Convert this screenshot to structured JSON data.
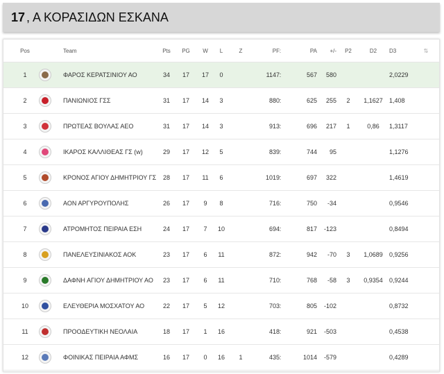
{
  "title": {
    "number": "17",
    "text": ", Α ΚΟΡΑΣΙΔΩΝ ΕΣΚΑΝΑ"
  },
  "columns": {
    "pos": "Pos",
    "team": "Team",
    "pts": "Pts",
    "pg": "PG",
    "w": "W",
    "l": "L",
    "z": "Z",
    "pf": "PF",
    "sep": ":",
    "pa": "PA",
    "pm": "+/-",
    "p2": "P2",
    "d2": "D2",
    "d3": "D3",
    "sort": "⇅"
  },
  "rows": [
    {
      "pos": "1",
      "team": "ΦΑΡΟΣ ΚΕΡΑΤΣΙΝΙΟΥ ΑΟ",
      "pts": "34",
      "pg": "17",
      "w": "17",
      "l": "0",
      "z": "",
      "pf": "1147",
      "pa": "567",
      "pm": "580",
      "p2": "",
      "d2": "",
      "d3": "2,0229",
      "logo_color": "#8a6a4a",
      "highlight": true
    },
    {
      "pos": "2",
      "team": "ΠΑΝΙΩΝΙΟΣ ΓΣΣ",
      "pts": "31",
      "pg": "17",
      "w": "14",
      "l": "3",
      "z": "",
      "pf": "880",
      "pa": "625",
      "pm": "255",
      "p2": "2",
      "d2": "1,1627",
      "d3": "1,408",
      "logo_color": "#c8202a",
      "highlight": false
    },
    {
      "pos": "3",
      "team": "ΠΡΩΤΕΑΣ ΒΟΥΛΑΣ ΑΕΟ",
      "pts": "31",
      "pg": "17",
      "w": "14",
      "l": "3",
      "z": "",
      "pf": "913",
      "pa": "696",
      "pm": "217",
      "p2": "1",
      "d2": "0,86",
      "d3": "1,3117",
      "logo_color": "#d0323a",
      "highlight": false
    },
    {
      "pos": "4",
      "team": "ΙΚΑΡΟΣ ΚΑΛΛΙΘΕΑΣ ΓΣ (w)",
      "pts": "29",
      "pg": "17",
      "w": "12",
      "l": "5",
      "z": "",
      "pf": "839",
      "pa": "744",
      "pm": "95",
      "p2": "",
      "d2": "",
      "d3": "1,1276",
      "logo_color": "#e0487a",
      "highlight": false
    },
    {
      "pos": "5",
      "team": "ΚΡΟΝΟΣ ΑΓΙΟΥ ΔΗΜΗΤΡΙΟΥ ΓΣ",
      "pts": "28",
      "pg": "17",
      "w": "11",
      "l": "6",
      "z": "",
      "pf": "1019",
      "pa": "697",
      "pm": "322",
      "p2": "",
      "d2": "",
      "d3": "1,4619",
      "logo_color": "#b04a2a",
      "highlight": false
    },
    {
      "pos": "6",
      "team": "ΑΟΝ ΑΡΓΥΡΟΥΠΟΛΗΣ",
      "pts": "26",
      "pg": "17",
      "w": "9",
      "l": "8",
      "z": "",
      "pf": "716",
      "pa": "750",
      "pm": "-34",
      "p2": "",
      "d2": "",
      "d3": "0,9546",
      "logo_color": "#4a6ab0",
      "highlight": false
    },
    {
      "pos": "7",
      "team": "ΑΤΡΟΜΗΤΟΣ ΠΕΙΡΑΙΑ ΕΣΗ",
      "pts": "24",
      "pg": "17",
      "w": "7",
      "l": "10",
      "z": "",
      "pf": "694",
      "pa": "817",
      "pm": "-123",
      "p2": "",
      "d2": "",
      "d3": "0,8494",
      "logo_color": "#2a3a8a",
      "highlight": false
    },
    {
      "pos": "8",
      "team": "ΠΑΝΕΛΕΥΣΙΝΙΑΚΟΣ ΑΟΚ",
      "pts": "23",
      "pg": "17",
      "w": "6",
      "l": "11",
      "z": "",
      "pf": "872",
      "pa": "942",
      "pm": "-70",
      "p2": "3",
      "d2": "1,0689",
      "d3": "0,9256",
      "logo_color": "#d8a020",
      "highlight": false
    },
    {
      "pos": "9",
      "team": "ΔΑΦΝΗ ΑΓΙΟΥ ΔΗΜΗΤΡΙΟΥ ΑΟ",
      "pts": "23",
      "pg": "17",
      "w": "6",
      "l": "11",
      "z": "",
      "pf": "710",
      "pa": "768",
      "pm": "-58",
      "p2": "3",
      "d2": "0,9354",
      "d3": "0,9244",
      "logo_color": "#2a7a2a",
      "highlight": false
    },
    {
      "pos": "10",
      "team": "ΕΛΕΥΘΕΡΙΑ ΜΟΣΧΑΤΟΥ ΑΟ",
      "pts": "22",
      "pg": "17",
      "w": "5",
      "l": "12",
      "z": "",
      "pf": "703",
      "pa": "805",
      "pm": "-102",
      "p2": "",
      "d2": "",
      "d3": "0,8732",
      "logo_color": "#3050a0",
      "highlight": false
    },
    {
      "pos": "11",
      "team": "ΠΡΟΟΔΕΥΤΙΚΗ ΝΕΟΛΑΙΑ",
      "pts": "18",
      "pg": "17",
      "w": "1",
      "l": "16",
      "z": "",
      "pf": "418",
      "pa": "921",
      "pm": "-503",
      "p2": "",
      "d2": "",
      "d3": "0,4538",
      "logo_color": "#c03030",
      "highlight": false
    },
    {
      "pos": "12",
      "team": "ΦΟΙΝΙΚΑΣ ΠΕΙΡΑΙΑ ΑΦΜΣ",
      "pts": "16",
      "pg": "17",
      "w": "0",
      "l": "16",
      "z": "1",
      "pf": "435",
      "pa": "1014",
      "pm": "-579",
      "p2": "",
      "d2": "",
      "d3": "0,4289",
      "logo_color": "#5a7ab8",
      "highlight": false
    }
  ]
}
